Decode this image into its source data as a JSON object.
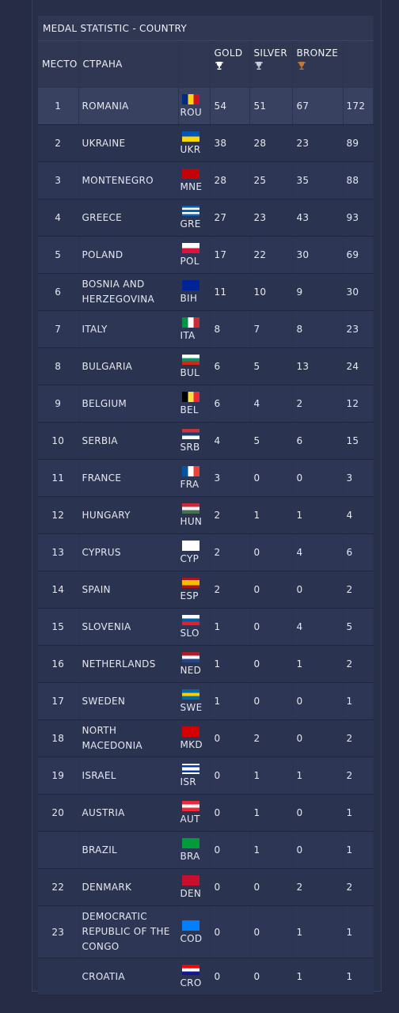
{
  "caption": "MEDAL STATISTIC - COUNTRY",
  "headers": {
    "place": "МЕСТО",
    "country": "СТРАНА",
    "gold": "GOLD",
    "silver": "SILVER",
    "bronze": "BRONZE"
  },
  "medal_colors": {
    "gold": "#ffffff",
    "silver": "#c9ccd6",
    "bronze": "#c8733a"
  },
  "rows": [
    {
      "place": "1",
      "country": "ROMANIA",
      "code": "ROU",
      "gold": "54",
      "silver": "51",
      "bronze": "67",
      "total": "172",
      "flag": {
        "type": "v",
        "colors": [
          "#002b7f",
          "#fcd116",
          "#ce1126"
        ]
      }
    },
    {
      "place": "2",
      "country": "UKRAINE",
      "code": "UKR",
      "gold": "38",
      "silver": "28",
      "bronze": "23",
      "total": "89",
      "flag": {
        "type": "h",
        "colors": [
          "#0057b7",
          "#ffd700"
        ]
      }
    },
    {
      "place": "3",
      "country": "MONTENEGRO",
      "code": "MNE",
      "gold": "28",
      "silver": "25",
      "bronze": "35",
      "total": "88",
      "flag": {
        "type": "h",
        "colors": [
          "#c40308"
        ]
      }
    },
    {
      "place": "4",
      "country": "GREECE",
      "code": "GRE",
      "gold": "27",
      "silver": "23",
      "bronze": "43",
      "total": "93",
      "flag": {
        "type": "h",
        "colors": [
          "#0d5eaf",
          "#ffffff",
          "#0d5eaf",
          "#ffffff",
          "#0d5eaf"
        ]
      }
    },
    {
      "place": "5",
      "country": "POLAND",
      "code": "POL",
      "gold": "17",
      "silver": "22",
      "bronze": "30",
      "total": "69",
      "flag": {
        "type": "h",
        "colors": [
          "#ffffff",
          "#dc143c"
        ]
      }
    },
    {
      "place": "6",
      "country": "BOSNIA AND HERZEGOVINA",
      "code": "BIH",
      "gold": "11",
      "silver": "10",
      "bronze": "9",
      "total": "30",
      "flag": {
        "type": "h",
        "colors": [
          "#002395"
        ]
      }
    },
    {
      "place": "7",
      "country": "ITALY",
      "code": "ITA",
      "gold": "8",
      "silver": "7",
      "bronze": "8",
      "total": "23",
      "flag": {
        "type": "v",
        "colors": [
          "#009246",
          "#ffffff",
          "#ce2b37"
        ]
      }
    },
    {
      "place": "8",
      "country": "BULGARIA",
      "code": "BUL",
      "gold": "6",
      "silver": "5",
      "bronze": "13",
      "total": "24",
      "flag": {
        "type": "h",
        "colors": [
          "#ffffff",
          "#00966e",
          "#d62612"
        ]
      }
    },
    {
      "place": "9",
      "country": "BELGIUM",
      "code": "BEL",
      "gold": "6",
      "silver": "4",
      "bronze": "2",
      "total": "12",
      "flag": {
        "type": "v",
        "colors": [
          "#000000",
          "#fae042",
          "#ed2939"
        ]
      }
    },
    {
      "place": "10",
      "country": "SERBIA",
      "code": "SRB",
      "gold": "4",
      "silver": "5",
      "bronze": "6",
      "total": "15",
      "flag": {
        "type": "h",
        "colors": [
          "#c6363c",
          "#0c4076",
          "#ffffff"
        ]
      }
    },
    {
      "place": "11",
      "country": "FRANCE",
      "code": "FRA",
      "gold": "3",
      "silver": "0",
      "bronze": "0",
      "total": "3",
      "flag": {
        "type": "v",
        "colors": [
          "#0055a4",
          "#ffffff",
          "#ef4135"
        ]
      }
    },
    {
      "place": "12",
      "country": "HUNGARY",
      "code": "HUN",
      "gold": "2",
      "silver": "1",
      "bronze": "1",
      "total": "4",
      "flag": {
        "type": "h",
        "colors": [
          "#ce2939",
          "#ffffff",
          "#477050"
        ]
      }
    },
    {
      "place": "13",
      "country": "CYPRUS",
      "code": "CYP",
      "gold": "2",
      "silver": "0",
      "bronze": "4",
      "total": "6",
      "flag": {
        "type": "h",
        "colors": [
          "#ffffff"
        ]
      }
    },
    {
      "place": "14",
      "country": "SPAIN",
      "code": "ESP",
      "gold": "2",
      "silver": "0",
      "bronze": "0",
      "total": "2",
      "flag": {
        "type": "h",
        "colors": [
          "#aa151b",
          "#f1bf00",
          "#f1bf00",
          "#aa151b"
        ]
      }
    },
    {
      "place": "15",
      "country": "SLOVENIA",
      "code": "SLO",
      "gold": "1",
      "silver": "0",
      "bronze": "4",
      "total": "5",
      "flag": {
        "type": "h",
        "colors": [
          "#ffffff",
          "#005da4",
          "#ed1c24"
        ]
      }
    },
    {
      "place": "16",
      "country": "NETHERLANDS",
      "code": "NED",
      "gold": "1",
      "silver": "0",
      "bronze": "1",
      "total": "2",
      "flag": {
        "type": "h",
        "colors": [
          "#ae1c28",
          "#ffffff",
          "#21468b"
        ]
      }
    },
    {
      "place": "17",
      "country": "SWEDEN",
      "code": "SWE",
      "gold": "1",
      "silver": "0",
      "bronze": "0",
      "total": "1",
      "flag": {
        "type": "h",
        "colors": [
          "#006aa7",
          "#fecc00",
          "#006aa7"
        ]
      }
    },
    {
      "place": "18",
      "country": "NORTH MACEDONIA",
      "code": "MKD",
      "gold": "0",
      "silver": "2",
      "bronze": "0",
      "total": "2",
      "flag": {
        "type": "h",
        "colors": [
          "#d20000"
        ]
      }
    },
    {
      "place": "19",
      "country": "ISRAEL",
      "code": "ISR",
      "gold": "0",
      "silver": "1",
      "bronze": "1",
      "total": "2",
      "flag": {
        "type": "h",
        "colors": [
          "#ffffff",
          "#0038b8",
          "#ffffff",
          "#ffffff",
          "#0038b8",
          "#ffffff"
        ]
      }
    },
    {
      "place": "20",
      "country": "AUSTRIA",
      "code": "AUT",
      "gold": "0",
      "silver": "1",
      "bronze": "0",
      "total": "1",
      "flag": {
        "type": "h",
        "colors": [
          "#ed2939",
          "#ffffff",
          "#ed2939"
        ]
      }
    },
    {
      "place": "",
      "country": "BRAZIL",
      "code": "BRA",
      "gold": "0",
      "silver": "1",
      "bronze": "0",
      "total": "1",
      "flag": {
        "type": "h",
        "colors": [
          "#009c3b"
        ]
      }
    },
    {
      "place": "22",
      "country": "DENMARK",
      "code": "DEN",
      "gold": "0",
      "silver": "0",
      "bronze": "2",
      "total": "2",
      "flag": {
        "type": "h",
        "colors": [
          "#c8102e"
        ]
      }
    },
    {
      "place": "23",
      "country": "DEMOCRATIC REPUBLIC OF THE CONGO",
      "code": "COD",
      "gold": "0",
      "silver": "0",
      "bronze": "1",
      "total": "1",
      "flag": {
        "type": "h",
        "colors": [
          "#007fff"
        ]
      }
    },
    {
      "place": "",
      "country": "CROATIA",
      "code": "CRO",
      "gold": "0",
      "silver": "0",
      "bronze": "1",
      "total": "1",
      "flag": {
        "type": "h",
        "colors": [
          "#ff0000",
          "#ffffff",
          "#171796"
        ]
      }
    }
  ]
}
